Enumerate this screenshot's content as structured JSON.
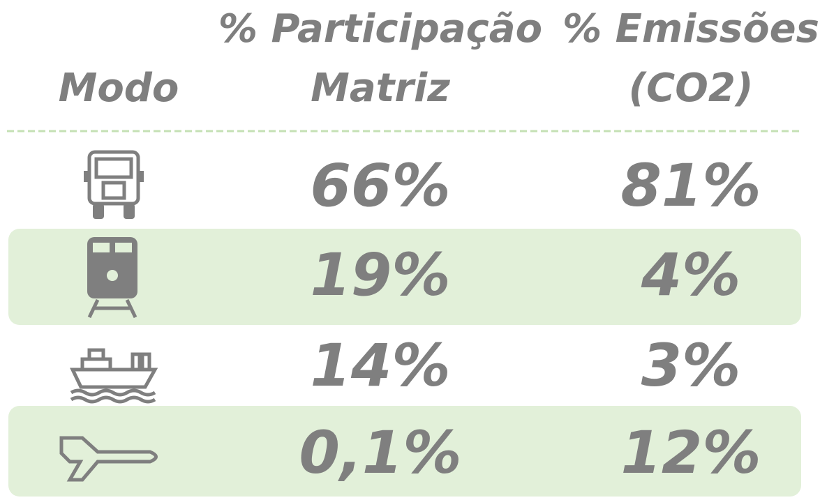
{
  "table": {
    "headers": [
      [
        "Modo"
      ],
      [
        "% Participação",
        "Matriz"
      ],
      [
        "% Emissões",
        "(CO2)"
      ]
    ],
    "rows": [
      [
        "66%",
        "81%"
      ],
      [
        "19%",
        "4%"
      ],
      [
        "14%",
        "3%"
      ],
      [
        "0,1%",
        "12%"
      ]
    ]
  }
}
